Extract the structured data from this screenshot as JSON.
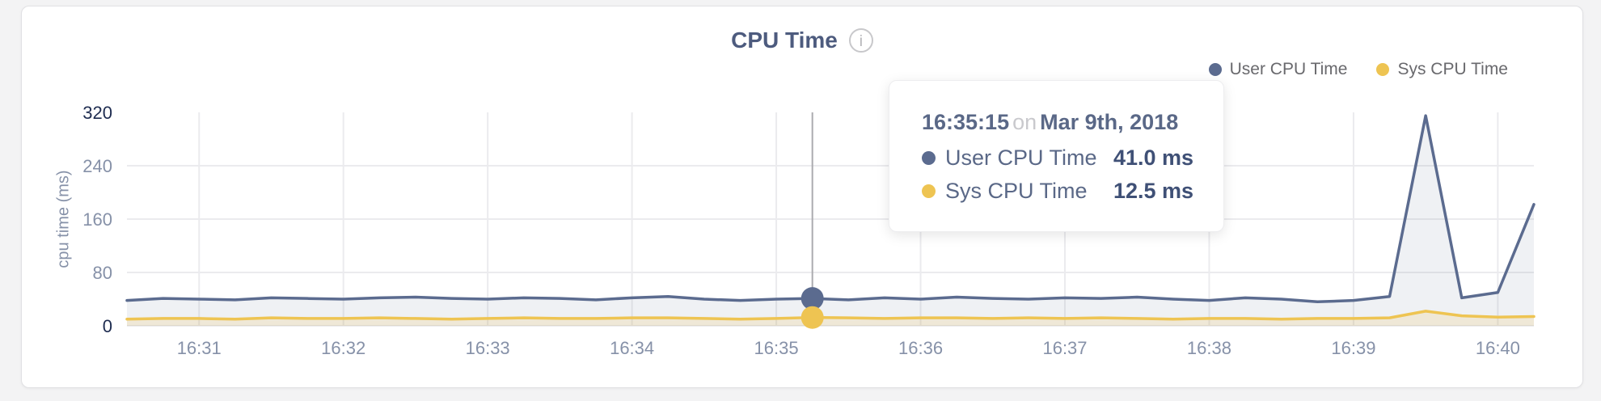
{
  "card": {
    "title": "CPU Time",
    "info_glyph": "i"
  },
  "legend": [
    {
      "label": "User CPU Time",
      "color": "#5b6b8f"
    },
    {
      "label": "Sys CPU Time",
      "color": "#eec452"
    }
  ],
  "tooltip": {
    "time": "16:35:15",
    "conjunction": "on",
    "date": "Mar 9th, 2018",
    "rows": [
      {
        "label": "User CPU Time",
        "value": "41.0 ms",
        "color": "#5b6b8f"
      },
      {
        "label": "Sys CPU Time",
        "value": "12.5 ms",
        "color": "#eec452"
      }
    ]
  },
  "chart_data": {
    "type": "area",
    "title": "CPU Time",
    "ylabel": "cpu time (ms)",
    "ylim": [
      0,
      320
    ],
    "yticks": [
      0,
      80,
      160,
      240,
      320
    ],
    "xticks": [
      "16:31",
      "16:32",
      "16:33",
      "16:34",
      "16:35",
      "16:36",
      "16:37",
      "16:38",
      "16:39",
      "16:40"
    ],
    "x_start": "16:30:30",
    "interval_seconds": 15,
    "grid": true,
    "legend_position": "top-right",
    "hover": {
      "index": 19,
      "time": "16:35:15",
      "date": "Mar 9th, 2018",
      "user_ms": 41.0,
      "sys_ms": 12.5
    },
    "series": [
      {
        "name": "User CPU Time",
        "color": "#5b6b8f",
        "fill": "rgba(99,113,148,0.10)",
        "values": [
          38,
          41,
          40,
          39,
          42,
          41,
          40,
          42,
          43,
          41,
          40,
          42,
          41,
          39,
          42,
          44,
          40,
          38,
          40,
          41,
          39,
          42,
          40,
          43,
          41,
          40,
          42,
          41,
          43,
          40,
          38,
          42,
          40,
          36,
          38,
          44,
          315,
          42,
          50,
          182
        ]
      },
      {
        "name": "Sys CPU Time",
        "color": "#eec452",
        "fill": "rgba(238,196,82,0.18)",
        "values": [
          10,
          11,
          11,
          10,
          12,
          11,
          11,
          12,
          11,
          10,
          11,
          12,
          11,
          11,
          12,
          12,
          11,
          10,
          11,
          12.5,
          12,
          11,
          12,
          12,
          11,
          12,
          11,
          12,
          11,
          10,
          11,
          11,
          10,
          11,
          11,
          12,
          22,
          15,
          13,
          14
        ]
      }
    ]
  }
}
